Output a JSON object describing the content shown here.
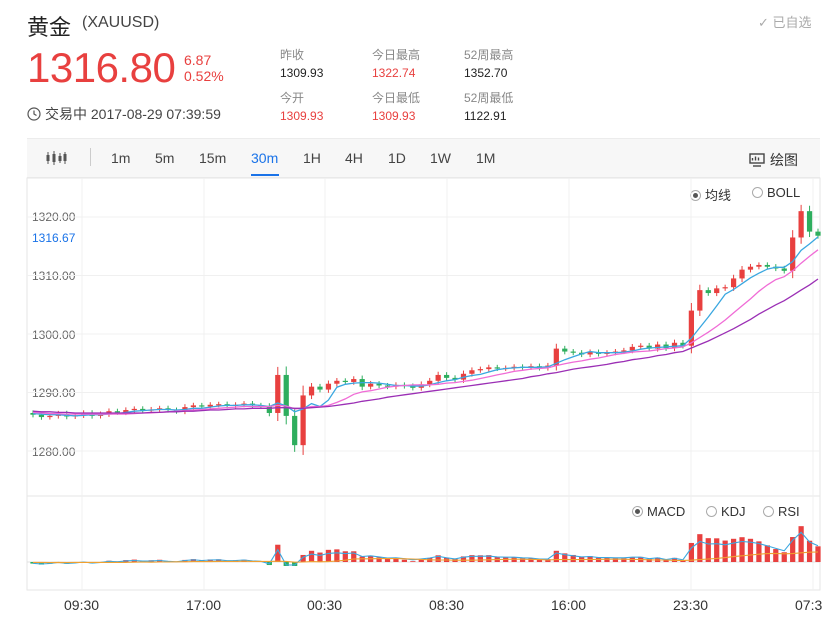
{
  "header": {
    "name": "黄金",
    "symbol": "(XAUUSD)",
    "watchlist_label": "已自选",
    "price": "1316.80",
    "change": "6.87",
    "change_pct": "0.52%",
    "status": "交易中 2017-08-29 07:39:59"
  },
  "stats": [
    {
      "label": "昨收",
      "value": "1309.93",
      "color": "normal"
    },
    {
      "label": "今日最高",
      "value": "1322.74",
      "color": "red"
    },
    {
      "label": "52周最高",
      "value": "1352.70",
      "color": "normal"
    },
    {
      "label": "今开",
      "value": "1309.93",
      "color": "red"
    },
    {
      "label": "今日最低",
      "value": "1309.93",
      "color": "red"
    },
    {
      "label": "52周最低",
      "value": "1122.91",
      "color": "normal"
    }
  ],
  "toolbar": {
    "timeframes": [
      "1m",
      "5m",
      "15m",
      "30m",
      "1H",
      "4H",
      "1D",
      "1W",
      "1M"
    ],
    "active": "30m",
    "draw_label": "绘图"
  },
  "main_options": {
    "ma": "均线",
    "boll": "BOLL",
    "selected": "均线"
  },
  "sub_options": {
    "macd": "MACD",
    "kdj": "KDJ",
    "rsi": "RSI",
    "selected": "MACD"
  },
  "colors": {
    "up": "#e8403f",
    "down": "#2eae5e",
    "ma5": "#3aa7e0",
    "ma10": "#f06cd6",
    "ma20": "#9b2fb5",
    "active": "#1a73e8"
  },
  "chart_data": {
    "type": "candlestick",
    "current_price_label": "1316.67",
    "y_ticks": [
      "1320.00",
      "1310.00",
      "1300.00",
      "1290.00",
      "1280.00"
    ],
    "ylim": [
      1276,
      1324
    ],
    "x_ticks": [
      "09:30",
      "17:00",
      "00:30",
      "08:30",
      "16:00",
      "23:30",
      "07:3"
    ],
    "closes": [
      1286.2,
      1285.8,
      1286.0,
      1286.4,
      1285.9,
      1286.1,
      1286.5,
      1286.0,
      1286.3,
      1286.8,
      1286.6,
      1287.0,
      1287.2,
      1286.9,
      1287.1,
      1287.3,
      1287.0,
      1286.8,
      1287.5,
      1287.8,
      1287.6,
      1287.9,
      1288.0,
      1287.7,
      1287.9,
      1288.1,
      1287.8,
      1287.6,
      1286.5,
      1293.0,
      1286.0,
      1281.0,
      1289.5,
      1291.0,
      1290.5,
      1291.5,
      1292.0,
      1291.8,
      1292.3,
      1291.0,
      1291.5,
      1291.2,
      1291.0,
      1291.3,
      1291.1,
      1290.8,
      1291.4,
      1292.0,
      1293.0,
      1292.5,
      1292.2,
      1293.2,
      1293.8,
      1294.0,
      1294.3,
      1294.1,
      1294.2,
      1294.4,
      1294.3,
      1294.5,
      1294.2,
      1294.6,
      1297.5,
      1297.0,
      1296.8,
      1296.5,
      1296.9,
      1296.6,
      1296.8,
      1297.0,
      1297.2,
      1297.8,
      1298.0,
      1297.5,
      1298.2,
      1297.6,
      1298.5,
      1298.0,
      1304.0,
      1307.5,
      1307.0,
      1307.8,
      1308.0,
      1309.5,
      1311.0,
      1311.5,
      1311.8,
      1311.5,
      1311.2,
      1310.8,
      1316.5,
      1321.0,
      1317.5,
      1316.8
    ],
    "ma5": [
      1286.4,
      1286.3,
      1286.2,
      1286.2,
      1286.1,
      1286.0,
      1286.1,
      1286.2,
      1286.2,
      1286.3,
      1286.4,
      1286.6,
      1286.8,
      1286.9,
      1287.0,
      1287.1,
      1287.1,
      1287.0,
      1287.1,
      1287.3,
      1287.3,
      1287.5,
      1287.7,
      1287.8,
      1287.8,
      1287.9,
      1287.9,
      1287.8,
      1287.6,
      1288.2,
      1287.7,
      1286.7,
      1287.2,
      1288.1,
      1287.6,
      1288.7,
      1290.9,
      1291.4,
      1291.6,
      1291.7,
      1291.7,
      1291.6,
      1291.4,
      1291.2,
      1291.2,
      1291.1,
      1291.1,
      1291.3,
      1291.7,
      1292.0,
      1292.2,
      1292.6,
      1292.9,
      1293.1,
      1293.5,
      1293.9,
      1294.1,
      1294.2,
      1294.3,
      1294.3,
      1294.3,
      1294.4,
      1295.0,
      1295.6,
      1296.1,
      1296.6,
      1297.0,
      1296.8,
      1296.8,
      1296.8,
      1296.9,
      1297.1,
      1297.4,
      1297.6,
      1297.7,
      1297.8,
      1297.9,
      1298.0,
      1299.3,
      1301.1,
      1302.9,
      1304.8,
      1306.8,
      1307.6,
      1308.6,
      1309.6,
      1310.4,
      1311.1,
      1311.4,
      1311.4,
      1312.4,
      1314.3,
      1315.4,
      1316.6
    ],
    "ma10": [
      1286.6,
      1286.5,
      1286.4,
      1286.4,
      1286.3,
      1286.3,
      1286.3,
      1286.3,
      1286.3,
      1286.3,
      1286.3,
      1286.3,
      1286.4,
      1286.5,
      1286.5,
      1286.6,
      1286.7,
      1286.8,
      1286.9,
      1287.0,
      1287.1,
      1287.2,
      1287.3,
      1287.4,
      1287.5,
      1287.6,
      1287.6,
      1287.6,
      1287.6,
      1287.8,
      1287.7,
      1287.2,
      1287.3,
      1287.6,
      1287.6,
      1287.8,
      1288.3,
      1288.9,
      1289.7,
      1290.1,
      1290.3,
      1290.6,
      1290.9,
      1291.1,
      1291.2,
      1291.3,
      1291.3,
      1291.3,
      1291.4,
      1291.6,
      1291.7,
      1291.9,
      1292.1,
      1292.4,
      1292.7,
      1293.0,
      1293.3,
      1293.6,
      1293.8,
      1294.0,
      1294.1,
      1294.2,
      1294.6,
      1294.9,
      1295.2,
      1295.4,
      1295.7,
      1295.9,
      1296.2,
      1296.5,
      1296.7,
      1296.9,
      1297.0,
      1297.1,
      1297.3,
      1297.5,
      1297.6,
      1297.8,
      1298.5,
      1299.4,
      1300.3,
      1301.3,
      1302.4,
      1303.6,
      1304.8,
      1306.0,
      1307.3,
      1308.4,
      1309.3,
      1309.8,
      1310.8,
      1312.1,
      1313.3,
      1314.4
    ],
    "ma20": [
      1286.8,
      1286.7,
      1286.7,
      1286.6,
      1286.6,
      1286.5,
      1286.5,
      1286.5,
      1286.5,
      1286.5,
      1286.5,
      1286.5,
      1286.5,
      1286.5,
      1286.6,
      1286.6,
      1286.7,
      1286.7,
      1286.8,
      1286.8,
      1286.9,
      1287.0,
      1287.0,
      1287.1,
      1287.2,
      1287.2,
      1287.3,
      1287.3,
      1287.3,
      1287.4,
      1287.4,
      1287.3,
      1287.3,
      1287.4,
      1287.5,
      1287.6,
      1287.8,
      1288.0,
      1288.2,
      1288.5,
      1288.7,
      1288.9,
      1289.2,
      1289.4,
      1289.6,
      1289.8,
      1290.0,
      1290.2,
      1290.4,
      1290.6,
      1290.8,
      1291.0,
      1291.2,
      1291.4,
      1291.6,
      1291.8,
      1292.0,
      1292.2,
      1292.4,
      1292.7,
      1292.9,
      1293.2,
      1293.4,
      1293.7,
      1294.0,
      1294.2,
      1294.4,
      1294.6,
      1294.8,
      1295.1,
      1295.3,
      1295.6,
      1295.8,
      1296.0,
      1296.3,
      1296.5,
      1296.8,
      1297.0,
      1297.6,
      1298.2,
      1298.8,
      1299.5,
      1300.2,
      1300.9,
      1301.7,
      1302.5,
      1303.4,
      1304.2,
      1305.0,
      1305.7,
      1306.6,
      1307.5,
      1308.4,
      1309.4
    ]
  }
}
